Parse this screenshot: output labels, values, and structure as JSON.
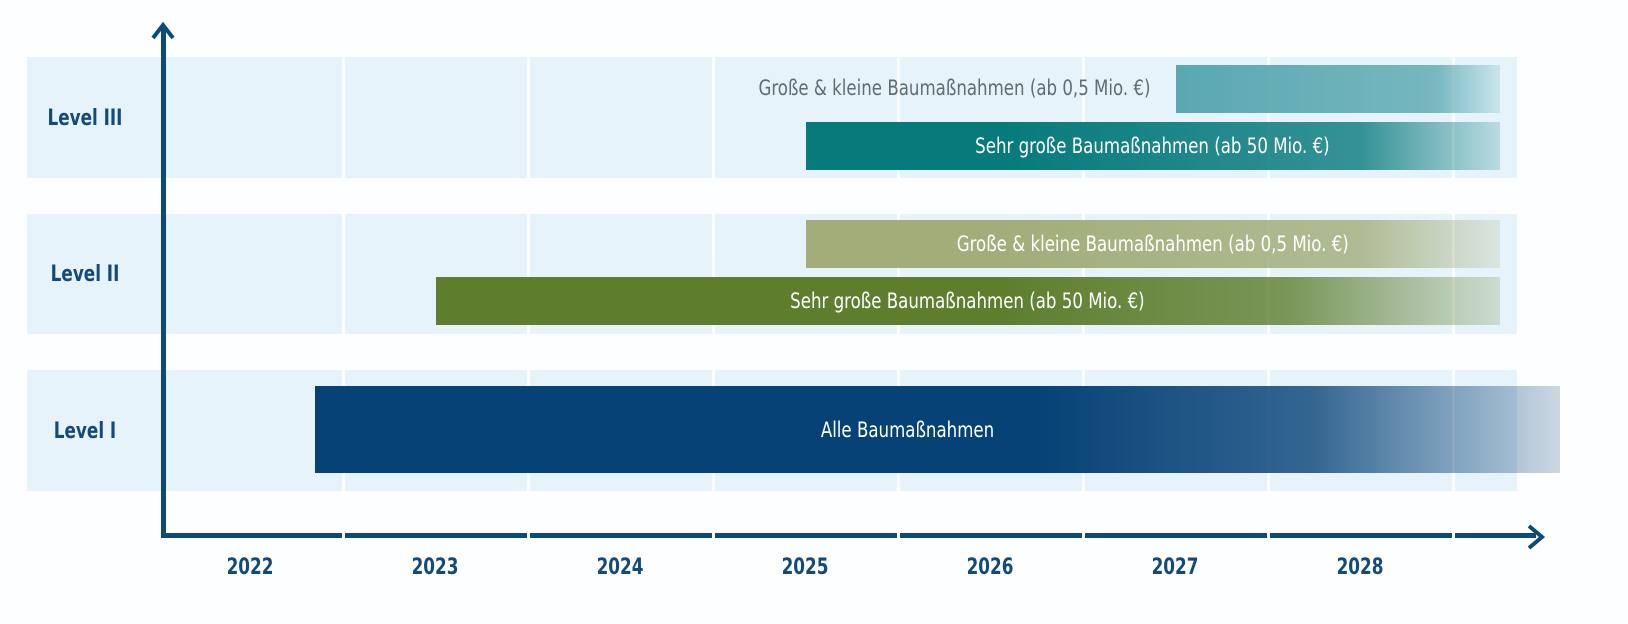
{
  "chart_data": {
    "type": "bar",
    "orientation": "horizontal-timeline",
    "categories": [
      "Level III",
      "Level II",
      "Level I"
    ],
    "x_ticks": [
      "2022",
      "2023",
      "2024",
      "2025",
      "2026",
      "2027",
      "2028"
    ],
    "xlim": [
      2022,
      2029
    ],
    "grid": true,
    "series": [
      {
        "level": "Level III",
        "label": "Große & kleine Baumaßnahmen (ab 0,5 Mio. €)",
        "start": 2027.5,
        "end": 2029,
        "open_ended": true,
        "color": "#5aa8b1",
        "label_position": "outside-left"
      },
      {
        "level": "Level III",
        "label": "Sehr große Baumaßnahmen (ab 50 Mio. €)",
        "start": 2025.5,
        "end": 2029,
        "open_ended": true,
        "color": "#077a7c",
        "label_position": "inside"
      },
      {
        "level": "Level II",
        "label": "Große & kleine Baumaßnahmen (ab 0,5 Mio. €)",
        "start": 2025.5,
        "end": 2029,
        "open_ended": true,
        "color": "#a2ad7a",
        "label_position": "inside"
      },
      {
        "level": "Level II",
        "label": "Sehr große Baumaßnahmen (ab 50 Mio. €)",
        "start": 2023.5,
        "end": 2029,
        "open_ended": true,
        "color": "#5e7e2e",
        "label_position": "inside"
      },
      {
        "level": "Level I",
        "label": "Alle Baumaßnahmen",
        "start": 2022.85,
        "end": 2029,
        "open_ended": true,
        "color": "#064276",
        "label_position": "inside"
      }
    ],
    "axis_color": "#0c4a7a",
    "band_color": "#e7f3fb"
  }
}
